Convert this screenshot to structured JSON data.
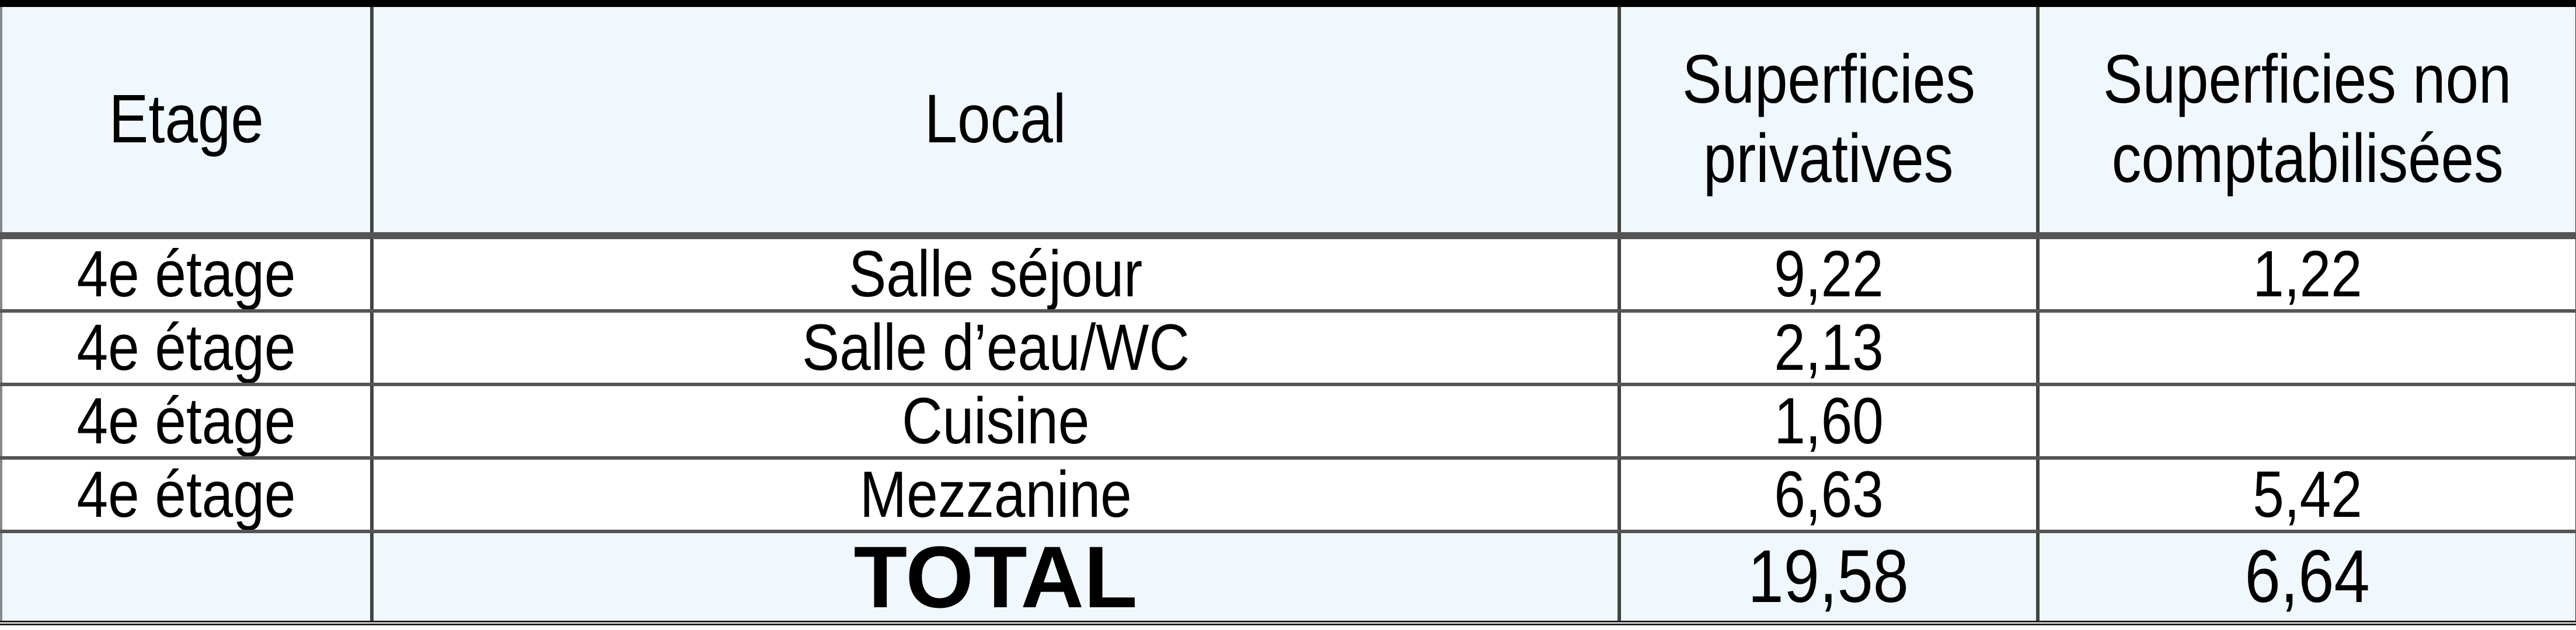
{
  "table": {
    "headers": [
      "Etage",
      "Local",
      "Superficies privatives",
      "Superficies non comptabilisées"
    ],
    "header_lines": [
      [
        "Etage"
      ],
      [
        "Local"
      ],
      [
        "Superficies",
        "privatives"
      ],
      [
        "Superficies non",
        "comptabilisées"
      ]
    ],
    "rows": [
      [
        "4e étage",
        "Salle séjour",
        "9,22",
        "1,22"
      ],
      [
        "4e étage",
        "Salle d’eau/WC",
        "2,13",
        ""
      ],
      [
        "4e étage",
        "Cuisine",
        "1,60",
        ""
      ],
      [
        "4e étage",
        "Mezzanine",
        "6,63",
        "5,42"
      ]
    ],
    "total": [
      "",
      "TOTAL",
      "19,58",
      "6,64"
    ]
  },
  "colors": {
    "header_bg": "#f0f8fd",
    "border": "#444444"
  }
}
